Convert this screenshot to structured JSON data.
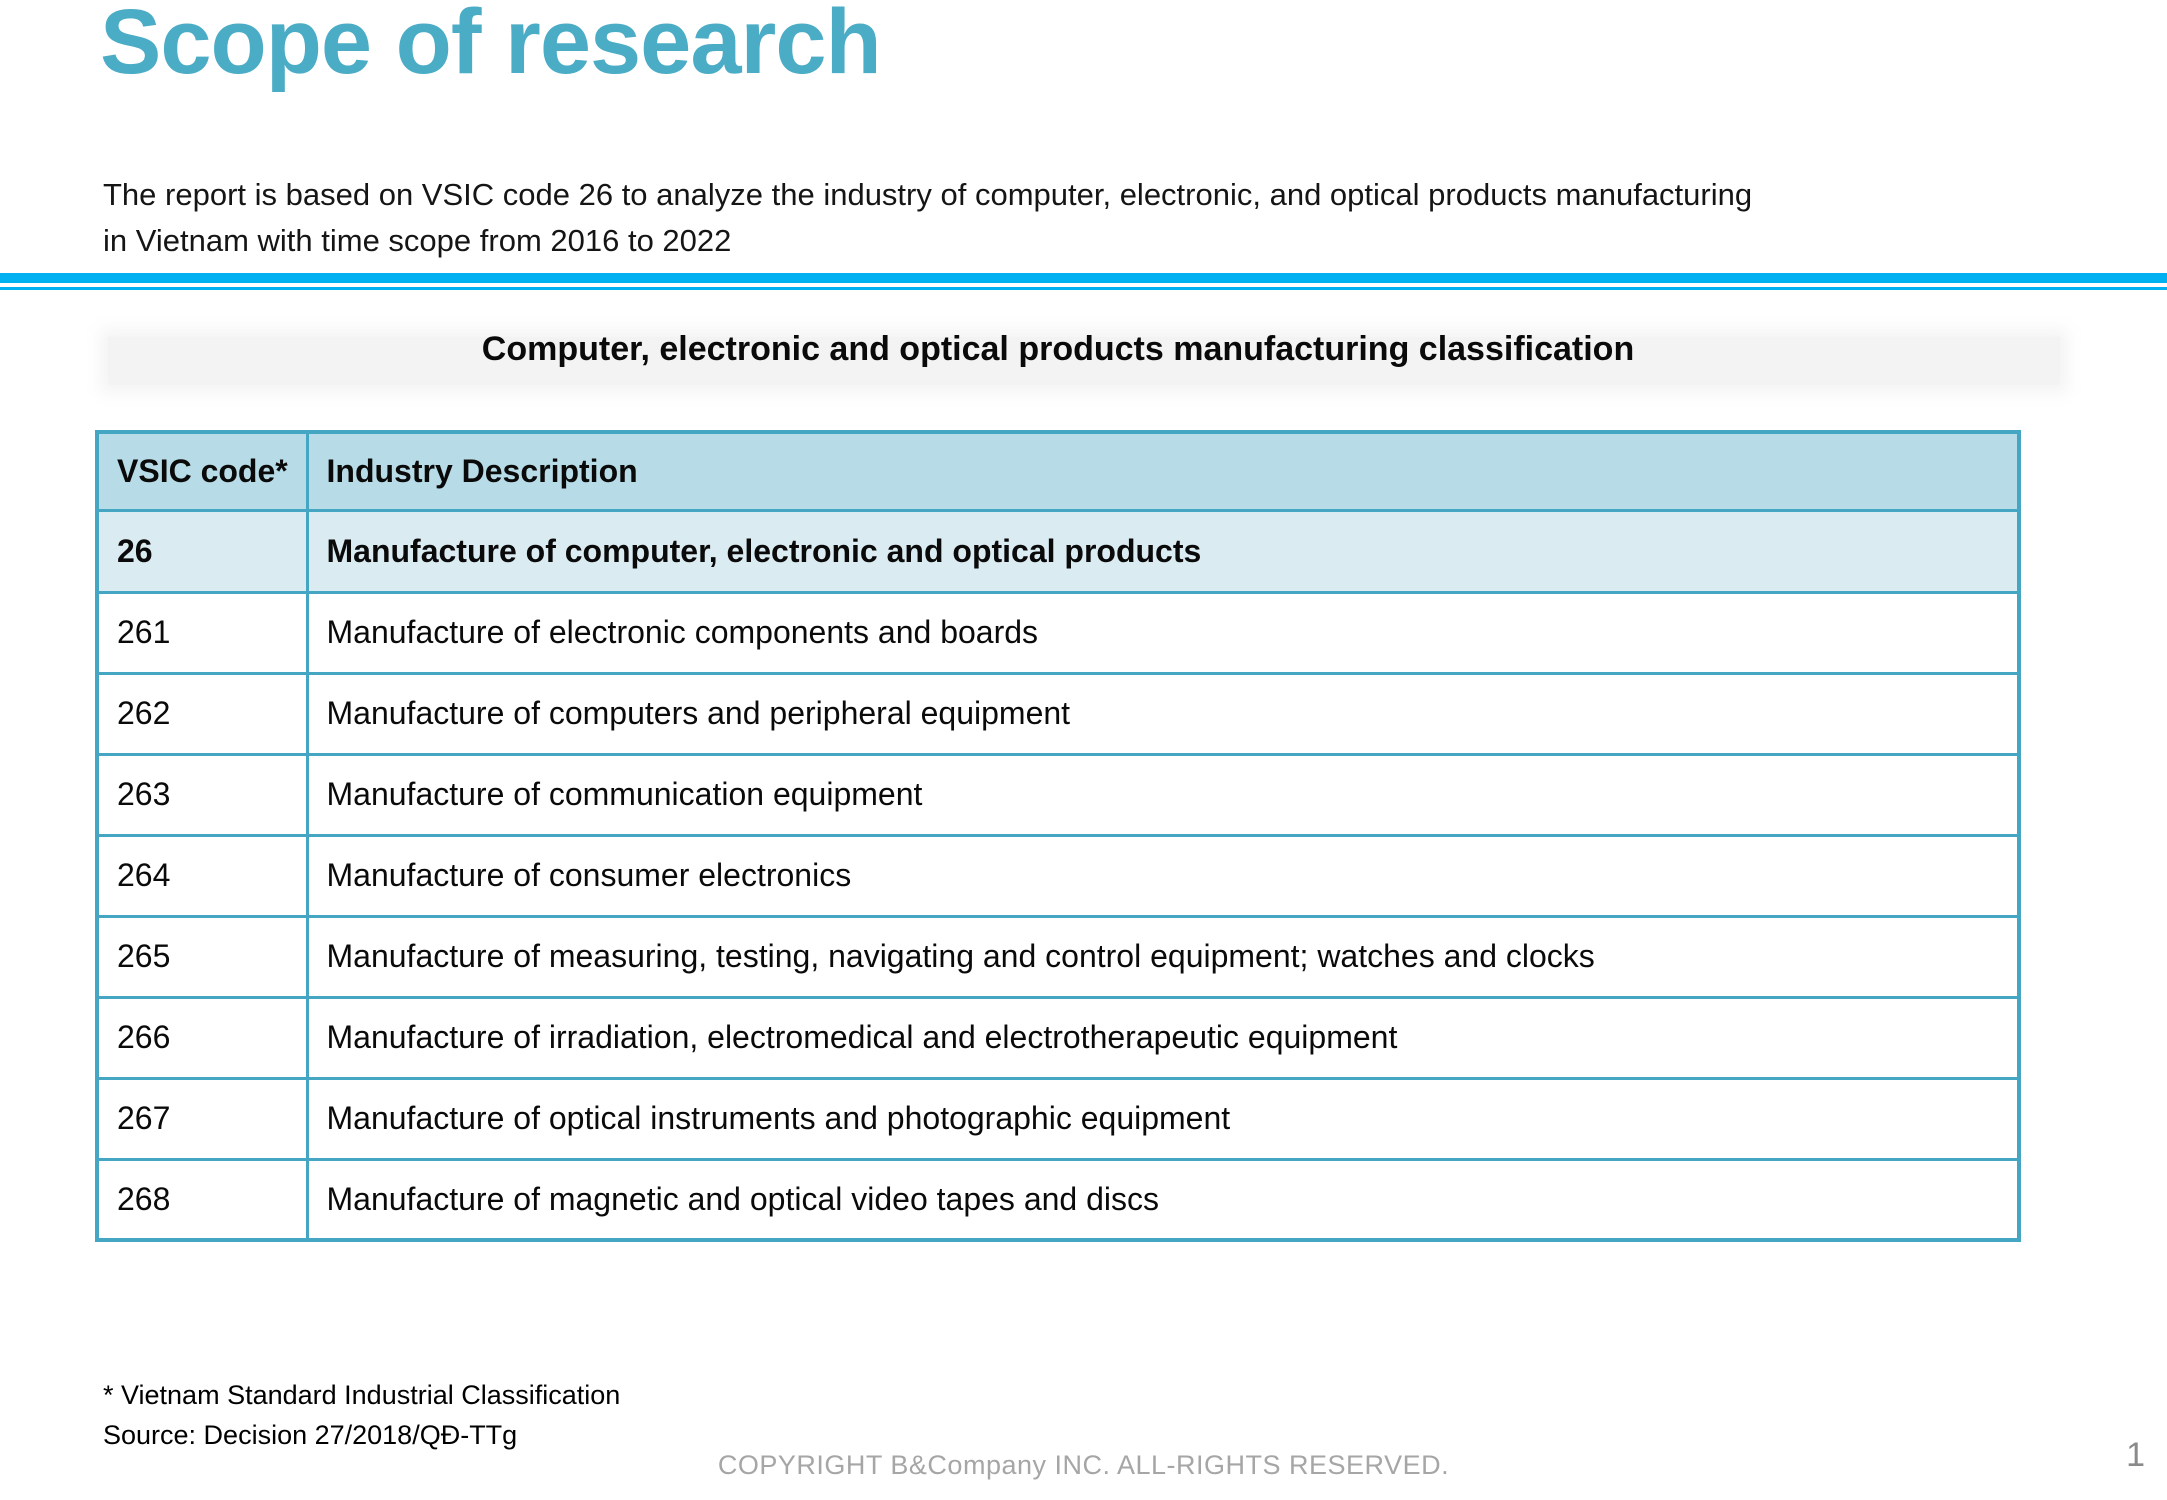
{
  "page": {
    "title": "Scope of research",
    "intro_line1": "The report is based on VSIC code 26 to analyze the industry of computer, electronic, and optical products manufacturing",
    "intro_line2": "in Vietnam with time scope from 2016 to 2022"
  },
  "classification": {
    "heading": "Computer, electronic and optical products manufacturing classification",
    "table": {
      "columns": {
        "code": "VSIC code*",
        "description": "Industry Description"
      },
      "rows": [
        {
          "code": "26",
          "description": "Manufacture of computer, electronic and optical products",
          "highlight": true
        },
        {
          "code": "261",
          "description": "Manufacture of electronic components and boards"
        },
        {
          "code": "262",
          "description": "Manufacture of computers and peripheral equipment"
        },
        {
          "code": "263",
          "description": "Manufacture of communication equipment"
        },
        {
          "code": "264",
          "description": "Manufacture of consumer electronics"
        },
        {
          "code": "265",
          "description": "Manufacture of measuring, testing, navigating and control equipment; watches and clocks"
        },
        {
          "code": "266",
          "description": "Manufacture of irradiation, electromedical and electrotherapeutic equipment"
        },
        {
          "code": "267",
          "description": "Manufacture of optical instruments and photographic equipment"
        },
        {
          "code": "268",
          "description": "Manufacture of magnetic and optical video tapes and discs"
        }
      ]
    }
  },
  "footer": {
    "footnote": "* Vietnam Standard Industrial Classification",
    "source": "Source: Decision 27/2018/QĐ-TTg",
    "copyright": "COPYRIGHT B&Company INC. ALL-RIGHTS RESERVED.",
    "page_number": "1"
  },
  "colors": {
    "title_accent": "#4BACC6",
    "divider_blue": "#00B0F0",
    "table_border": "#45A6C4",
    "header_row_bg": "#B7DCE7",
    "highlight_row_bg": "#DAEBF2",
    "muted_text": "#A6A6A6"
  }
}
